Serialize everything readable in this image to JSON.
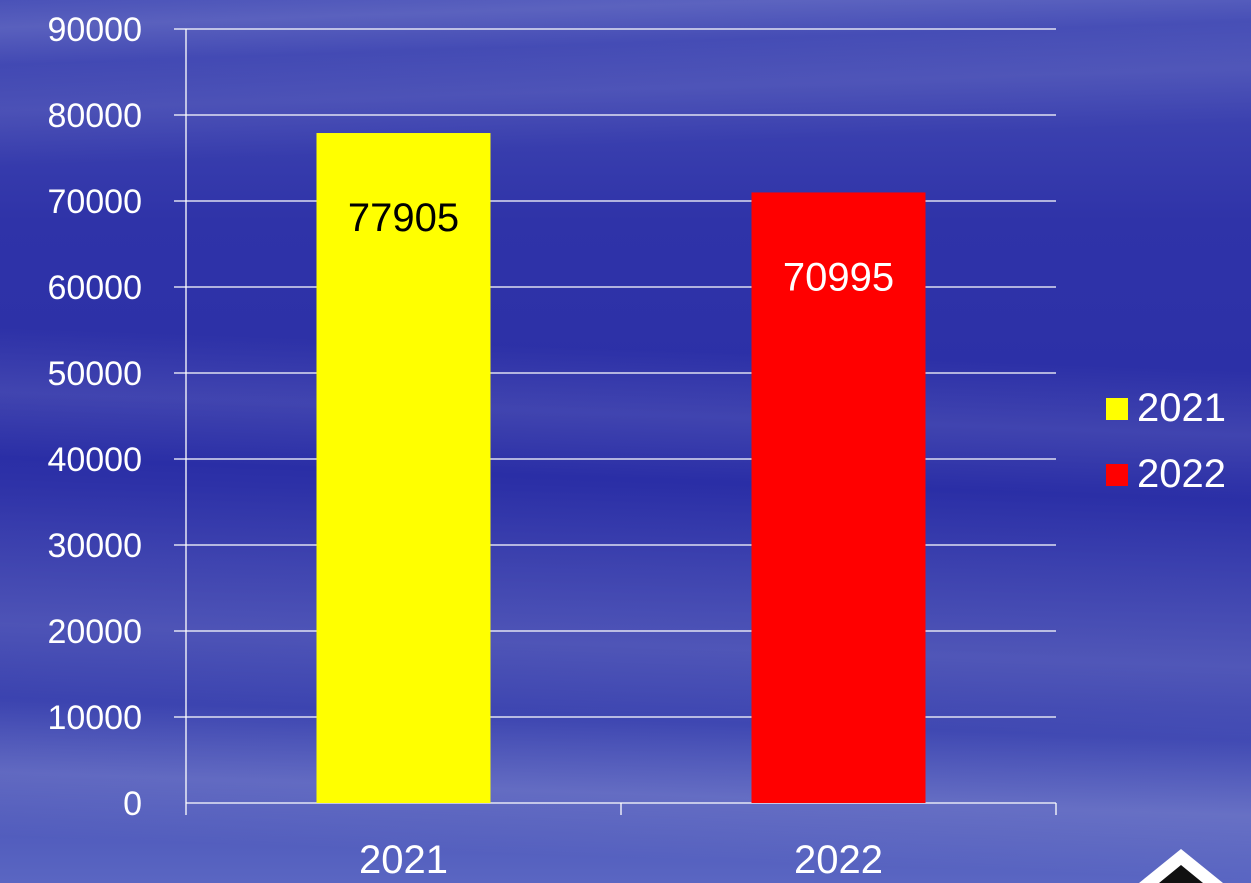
{
  "chart_data": {
    "type": "bar",
    "categories": [
      "2021",
      "2022"
    ],
    "series": [
      {
        "name": "2021",
        "values": [
          77905,
          null
        ],
        "color": "#ffff00",
        "label_color": "#000000"
      },
      {
        "name": "2022",
        "values": [
          null,
          70995
        ],
        "color": "#ff0000",
        "label_color": "#ffffff"
      }
    ],
    "data_labels": [
      "77905",
      "70995"
    ],
    "title": "",
    "xlabel": "",
    "ylabel": "",
    "ylim": [
      0,
      90000
    ],
    "y_ticks": [
      "0",
      "10000",
      "20000",
      "30000",
      "40000",
      "50000",
      "60000",
      "70000",
      "80000",
      "90000"
    ],
    "grid": true,
    "legend_position": "right",
    "colors": {
      "gridline": "#ffffff",
      "axis_text": "#ffffff"
    }
  }
}
